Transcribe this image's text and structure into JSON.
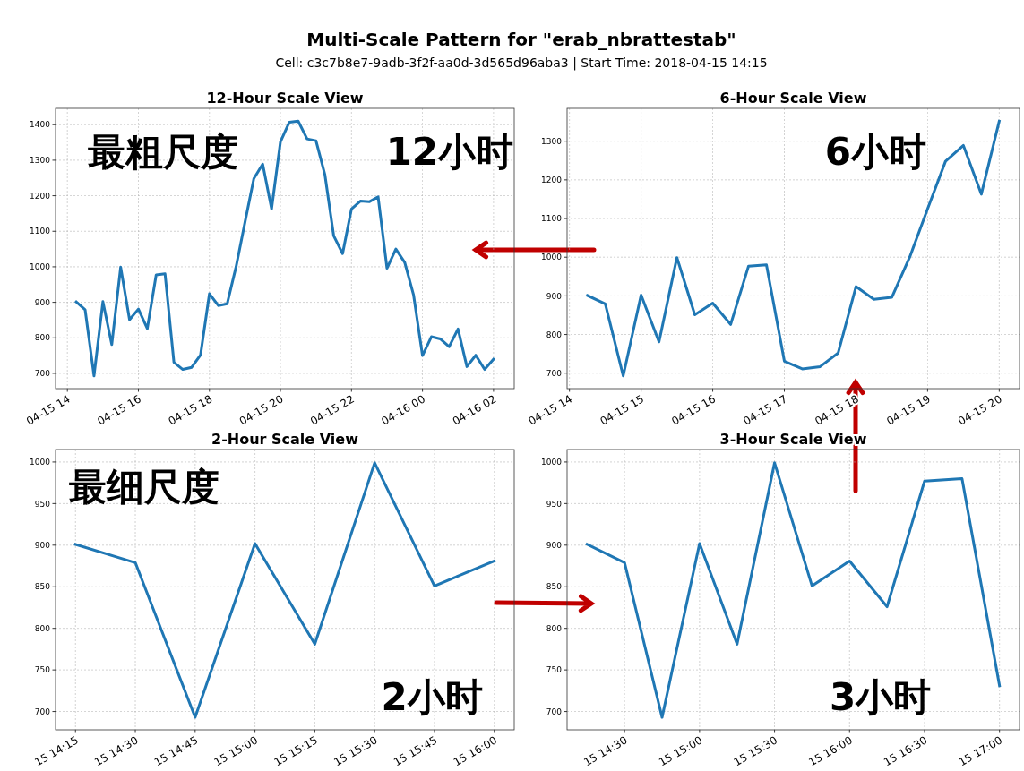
{
  "chart_data": [
    {
      "type": "other",
      "title": "Multi-Scale Pattern for \"erab_nbrattestab\"",
      "subtitle": "Cell: c3c7b8e7-9adb-3f2f-aa0d-3d565d96aba3 | Start Time: 2018-04-15 14:15"
    },
    {
      "type": "line",
      "title": "12-Hour Scale View",
      "grid": true,
      "annotations": [
        "最粗尺度",
        "12小时"
      ],
      "xlim": [
        "2018-04-15T13:40",
        "2018-04-16T02:35"
      ],
      "ylim": [
        657,
        1446
      ],
      "xticks": [
        {
          "value": "2018-04-15T14:00",
          "label": "04-15 14"
        },
        {
          "value": "2018-04-15T16:00",
          "label": "04-15 16"
        },
        {
          "value": "2018-04-15T18:00",
          "label": "04-15 18"
        },
        {
          "value": "2018-04-15T20:00",
          "label": "04-15 20"
        },
        {
          "value": "2018-04-15T22:00",
          "label": "04-15 22"
        },
        {
          "value": "2018-04-16T00:00",
          "label": "04-16 00"
        },
        {
          "value": "2018-04-16T02:00",
          "label": "04-16 02"
        }
      ],
      "yticks": [
        700,
        800,
        900,
        1000,
        1100,
        1200,
        1300,
        1400
      ],
      "series": [
        {
          "color": "#1f77b4",
          "x": [
            "2018-04-15T14:15",
            "2018-04-15T14:30",
            "2018-04-15T14:45",
            "2018-04-15T15:00",
            "2018-04-15T15:15",
            "2018-04-15T15:30",
            "2018-04-15T15:45",
            "2018-04-15T16:00",
            "2018-04-15T16:15",
            "2018-04-15T16:30",
            "2018-04-15T16:45",
            "2018-04-15T17:00",
            "2018-04-15T17:15",
            "2018-04-15T17:30",
            "2018-04-15T17:45",
            "2018-04-15T18:00",
            "2018-04-15T18:15",
            "2018-04-15T18:30",
            "2018-04-15T18:45",
            "2018-04-15T19:00",
            "2018-04-15T19:15",
            "2018-04-15T19:30",
            "2018-04-15T19:45",
            "2018-04-15T20:00",
            "2018-04-15T20:15",
            "2018-04-15T20:30",
            "2018-04-15T20:45",
            "2018-04-15T21:00",
            "2018-04-15T21:15",
            "2018-04-15T21:30",
            "2018-04-15T21:45",
            "2018-04-15T22:00",
            "2018-04-15T22:15",
            "2018-04-15T22:30",
            "2018-04-15T22:45",
            "2018-04-15T23:00",
            "2018-04-15T23:15",
            "2018-04-15T23:30",
            "2018-04-15T23:45",
            "2018-04-16T00:00",
            "2018-04-16T00:15",
            "2018-04-16T00:30",
            "2018-04-16T00:45",
            "2018-04-16T01:00",
            "2018-04-16T01:15",
            "2018-04-16T01:30",
            "2018-04-16T01:45",
            "2018-04-16T02:00"
          ],
          "values": [
            901,
            879,
            693,
            902,
            781,
            999,
            851,
            881,
            826,
            977,
            980,
            731,
            711,
            717,
            752,
            924,
            891,
            896,
            1000,
            1125,
            1248,
            1289,
            1163,
            1352,
            1407,
            1410,
            1360,
            1355,
            1260,
            1087,
            1037,
            1163,
            1185,
            1183,
            1197,
            996,
            1050,
            1012,
            920,
            750,
            803,
            797,
            775,
            825,
            719,
            751,
            711,
            740
          ]
        }
      ]
    },
    {
      "type": "line",
      "title": "6-Hour Scale View",
      "grid": true,
      "annotations": [
        "6小时"
      ],
      "xlim": [
        "2018-04-15T13:58",
        "2018-04-15T20:17"
      ],
      "ylim": [
        660,
        1385
      ],
      "xticks": [
        {
          "value": "2018-04-15T14:00",
          "label": "04-15 14"
        },
        {
          "value": "2018-04-15T15:00",
          "label": "04-15 15"
        },
        {
          "value": "2018-04-15T16:00",
          "label": "04-15 16"
        },
        {
          "value": "2018-04-15T17:00",
          "label": "04-15 17"
        },
        {
          "value": "2018-04-15T18:00",
          "label": "04-15 18"
        },
        {
          "value": "2018-04-15T19:00",
          "label": "04-15 19"
        },
        {
          "value": "2018-04-15T20:00",
          "label": "04-15 20"
        }
      ],
      "yticks": [
        700,
        800,
        900,
        1000,
        1100,
        1200,
        1300
      ],
      "series": [
        {
          "color": "#1f77b4",
          "x": [
            "2018-04-15T14:15",
            "2018-04-15T14:30",
            "2018-04-15T14:45",
            "2018-04-15T15:00",
            "2018-04-15T15:15",
            "2018-04-15T15:30",
            "2018-04-15T15:45",
            "2018-04-15T16:00",
            "2018-04-15T16:15",
            "2018-04-15T16:30",
            "2018-04-15T16:45",
            "2018-04-15T17:00",
            "2018-04-15T17:15",
            "2018-04-15T17:30",
            "2018-04-15T17:45",
            "2018-04-15T18:00",
            "2018-04-15T18:15",
            "2018-04-15T18:30",
            "2018-04-15T18:45",
            "2018-04-15T19:00",
            "2018-04-15T19:15",
            "2018-04-15T19:30",
            "2018-04-15T19:45",
            "2018-04-15T20:00"
          ],
          "values": [
            901,
            879,
            693,
            902,
            781,
            999,
            851,
            881,
            826,
            977,
            980,
            731,
            711,
            717,
            752,
            924,
            891,
            896,
            1000,
            1125,
            1248,
            1289,
            1163,
            1352
          ]
        }
      ]
    },
    {
      "type": "line",
      "title": "2-Hour Scale View",
      "grid": true,
      "annotations": [
        "最细尺度",
        "2小时"
      ],
      "xlim": [
        "2018-04-15T14:10",
        "2018-04-15T16:05"
      ],
      "ylim": [
        678,
        1015
      ],
      "xticks": [
        {
          "value": "2018-04-15T14:15",
          "label": "15 14:15"
        },
        {
          "value": "2018-04-15T14:30",
          "label": "15 14:30"
        },
        {
          "value": "2018-04-15T14:45",
          "label": "15 14:45"
        },
        {
          "value": "2018-04-15T15:00",
          "label": "15 15:00"
        },
        {
          "value": "2018-04-15T15:15",
          "label": "15 15:15"
        },
        {
          "value": "2018-04-15T15:30",
          "label": "15 15:30"
        },
        {
          "value": "2018-04-15T15:45",
          "label": "15 15:45"
        },
        {
          "value": "2018-04-15T16:00",
          "label": "15 16:00"
        }
      ],
      "yticks": [
        700,
        750,
        800,
        850,
        900,
        950,
        1000
      ],
      "series": [
        {
          "color": "#1f77b4",
          "x": [
            "2018-04-15T14:15",
            "2018-04-15T14:30",
            "2018-04-15T14:45",
            "2018-04-15T15:00",
            "2018-04-15T15:15",
            "2018-04-15T15:30",
            "2018-04-15T15:45",
            "2018-04-15T16:00"
          ],
          "values": [
            901,
            879,
            693,
            902,
            781,
            999,
            851,
            881
          ]
        }
      ]
    },
    {
      "type": "line",
      "title": "3-Hour Scale View",
      "grid": true,
      "annotations": [
        "3小时"
      ],
      "xlim": [
        "2018-04-15T14:07",
        "2018-04-15T17:08"
      ],
      "ylim": [
        678,
        1015
      ],
      "xticks": [
        {
          "value": "2018-04-15T14:30",
          "label": "15 14:30"
        },
        {
          "value": "2018-04-15T15:00",
          "label": "15 15:00"
        },
        {
          "value": "2018-04-15T15:30",
          "label": "15 15:30"
        },
        {
          "value": "2018-04-15T16:00",
          "label": "15 16:00"
        },
        {
          "value": "2018-04-15T16:30",
          "label": "15 16:30"
        },
        {
          "value": "2018-04-15T17:00",
          "label": "15 17:00"
        }
      ],
      "yticks": [
        700,
        750,
        800,
        850,
        900,
        950,
        1000
      ],
      "series": [
        {
          "color": "#1f77b4",
          "x": [
            "2018-04-15T14:15",
            "2018-04-15T14:30",
            "2018-04-15T14:45",
            "2018-04-15T15:00",
            "2018-04-15T15:15",
            "2018-04-15T15:30",
            "2018-04-15T15:45",
            "2018-04-15T16:00",
            "2018-04-15T16:15",
            "2018-04-15T16:30",
            "2018-04-15T16:45",
            "2018-04-15T17:00"
          ],
          "values": [
            901,
            879,
            693,
            902,
            781,
            999,
            851,
            881,
            826,
            977,
            980,
            731
          ]
        }
      ]
    }
  ]
}
